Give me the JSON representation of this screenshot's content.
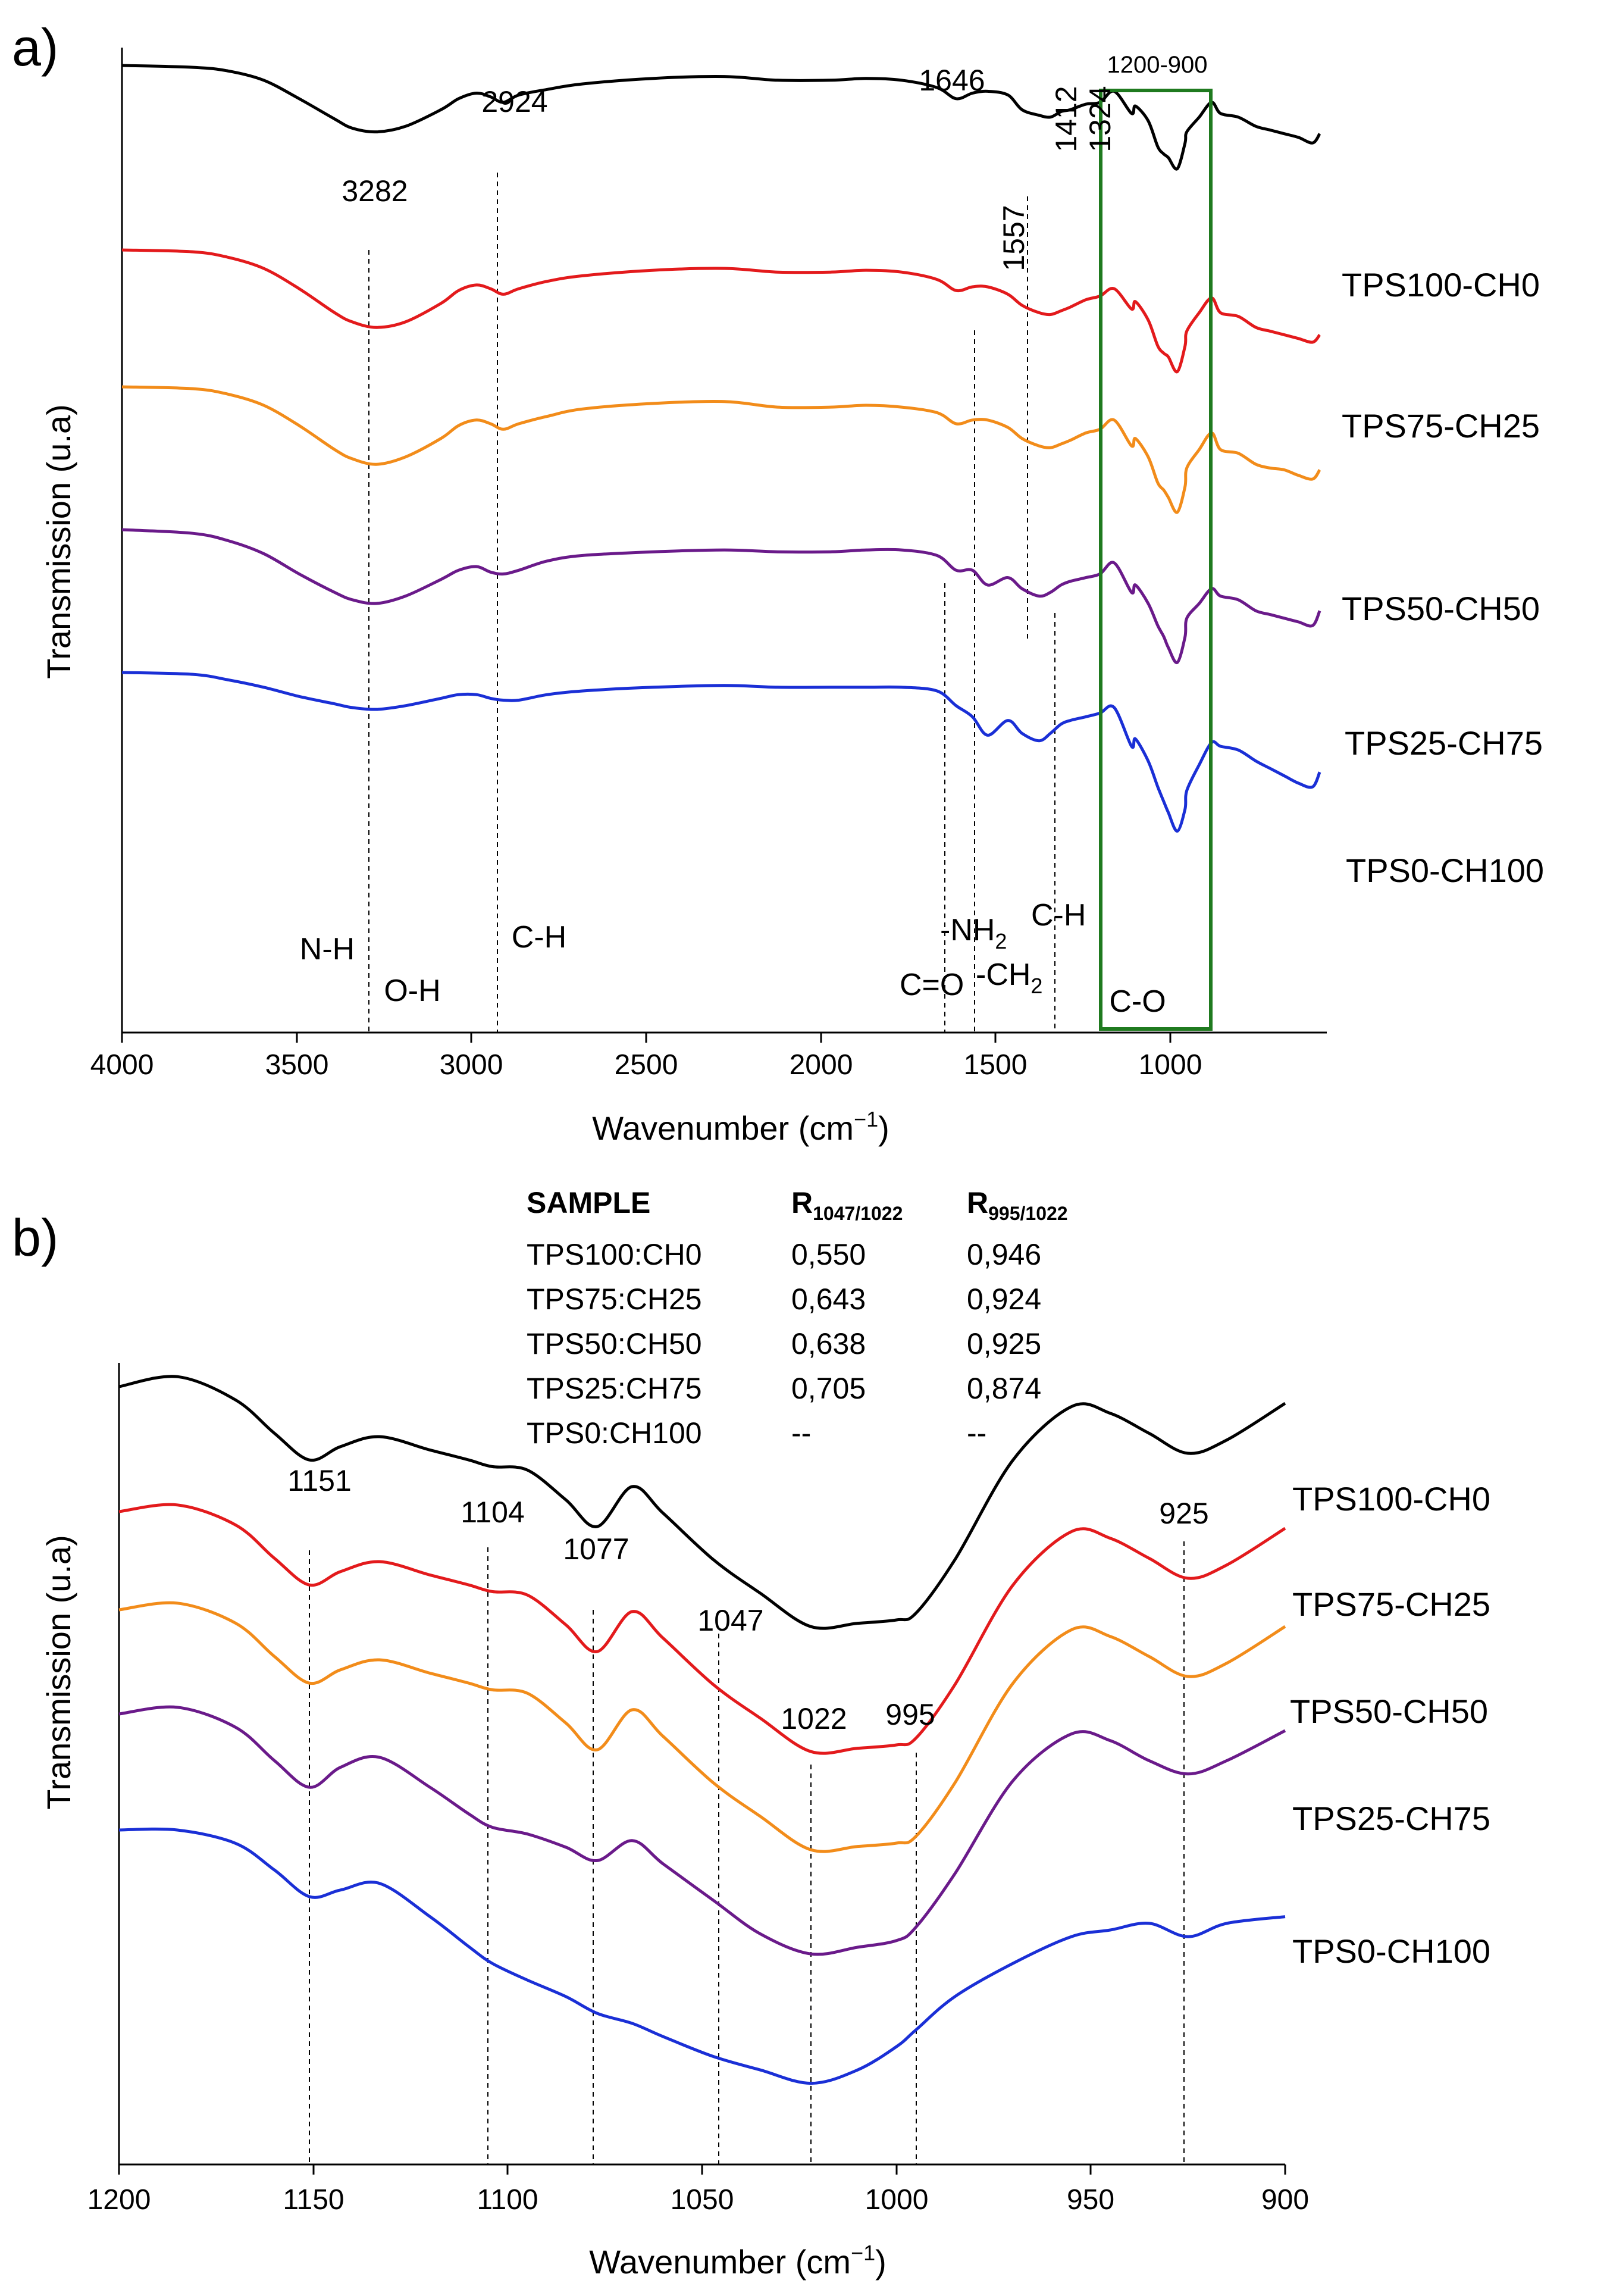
{
  "colors": {
    "TPS100-CH0": "#000000",
    "TPS75-CH25": "#e31a1c",
    "TPS50-CH50": "#f28c1a",
    "TPS25-CH75": "#6a1a8a",
    "TPS0-CH100": "#1a2fd6",
    "box": "#1f7a1f"
  },
  "chart_data": [
    {
      "panel": "a)",
      "type": "line",
      "xlabel_main": "Wavenumber (cm",
      "xlabel_sup": "−1",
      "xlabel_end": ")",
      "ylabel": "Transmission (u.a)",
      "xlim": [
        4000,
        600
      ],
      "x_ticks": [
        4000,
        3500,
        3000,
        2500,
        2000,
        1500,
        1000
      ],
      "grid": false,
      "legend": "labels at right end of each curve",
      "series_x": [
        4000,
        3800,
        3700,
        3600,
        3500,
        3400,
        3350,
        3282,
        3200,
        3100,
        3050,
        3000,
        2960,
        2924,
        2880,
        2800,
        2700,
        2500,
        2300,
        2150,
        2000,
        1900,
        1800,
        1700,
        1646,
        1600,
        1557,
        1500,
        1460,
        1412,
        1380,
        1350,
        1324,
        1280,
        1240,
        1200,
        1151,
        1140,
        1104,
        1077,
        1060,
        1047,
        1022,
        1000,
        995,
        960,
        925,
        900,
        850,
        800,
        760,
        720,
        680,
        640,
        620
      ],
      "series": [
        {
          "name": "TPS100-CH0",
          "values": [
            100,
            99,
            97,
            92,
            82,
            71,
            66,
            64,
            67,
            76,
            82,
            85,
            83,
            80,
            84,
            87,
            90,
            93,
            94,
            92,
            92,
            93,
            92,
            88,
            82,
            85,
            86,
            84,
            76,
            73,
            72,
            75,
            76,
            79,
            80,
            86,
            74,
            78,
            70,
            56,
            52,
            50,
            44,
            58,
            64,
            72,
            80,
            74,
            72,
            67,
            65,
            63,
            61,
            58,
            63
          ]
        },
        {
          "name": "TPS75-CH25",
          "values": [
            100,
            99,
            96,
            90,
            79,
            66,
            61,
            58,
            61,
            71,
            78,
            81,
            79,
            76,
            79,
            83,
            86,
            89,
            90,
            88,
            88,
            89,
            88,
            84,
            78,
            80,
            80,
            76,
            70,
            66,
            65,
            67,
            69,
            73,
            75,
            79,
            68,
            72,
            62,
            48,
            44,
            42,
            34,
            48,
            56,
            66,
            74,
            66,
            64,
            58,
            56,
            54,
            52,
            50,
            54
          ]
        },
        {
          "name": "TPS50-CH50",
          "values": [
            100,
            99,
            96,
            90,
            79,
            66,
            61,
            58,
            62,
            72,
            79,
            82,
            80,
            77,
            80,
            84,
            88,
            91,
            92,
            89,
            89,
            90,
            89,
            86,
            80,
            82,
            82,
            78,
            72,
            68,
            67,
            69,
            71,
            75,
            77,
            82,
            68,
            72,
            62,
            48,
            44,
            40,
            32,
            46,
            56,
            66,
            75,
            66,
            64,
            58,
            56,
            55,
            52,
            50,
            55
          ]
        },
        {
          "name": "TPS25-CH75",
          "values": [
            100,
            98,
            94,
            87,
            76,
            66,
            62,
            60,
            64,
            73,
            78,
            80,
            77,
            76,
            78,
            83,
            86,
            88,
            89,
            88,
            88,
            89,
            89,
            86,
            78,
            78,
            70,
            74,
            68,
            64,
            66,
            70,
            72,
            74,
            76,
            82,
            66,
            70,
            60,
            48,
            42,
            36,
            28,
            42,
            52,
            60,
            68,
            64,
            62,
            56,
            54,
            52,
            50,
            48,
            56
          ]
        },
        {
          "name": "TPS0-CH100",
          "values": [
            100,
            99,
            96,
            92,
            87,
            83,
            81,
            80,
            82,
            86,
            88,
            88,
            86,
            85,
            85,
            88,
            90,
            92,
            93,
            92,
            92,
            92,
            92,
            90,
            82,
            76,
            66,
            74,
            67,
            63,
            67,
            72,
            74,
            76,
            78,
            81,
            60,
            64,
            52,
            38,
            30,
            24,
            14,
            26,
            36,
            50,
            62,
            60,
            58,
            52,
            48,
            44,
            40,
            38,
            46
          ]
        }
      ],
      "peak_labels": [
        "3282",
        "2924",
        "1646",
        "1412",
        "1324",
        "1557"
      ],
      "group_labels": [
        "N-H",
        "O-H",
        "C-H",
        "-NH",
        "2",
        "C-H",
        "C=O",
        "-CH",
        "2",
        "C-O"
      ],
      "box_label": "1200-900"
    },
    {
      "panel": "b)",
      "type": "line",
      "xlabel_main": "Wavenumber (cm",
      "xlabel_sup": "−1",
      "xlabel_end": ")",
      "ylabel": "Transmission (u.a)",
      "xlim": [
        1200,
        900
      ],
      "x_ticks": [
        1200,
        1150,
        1100,
        1050,
        1000,
        950,
        900
      ],
      "grid": false,
      "legend": "labels at right end of each curve",
      "series_x": [
        1200,
        1185,
        1170,
        1160,
        1151,
        1143,
        1133,
        1120,
        1110,
        1104,
        1095,
        1085,
        1077,
        1068,
        1060,
        1047,
        1035,
        1022,
        1010,
        1000,
        995,
        985,
        970,
        955,
        945,
        935,
        925,
        915,
        900
      ],
      "series": [
        {
          "name": "TPS100-CH0",
          "values": [
            100,
            103,
            96,
            86,
            78,
            82,
            85,
            81,
            78,
            76,
            75,
            66,
            58,
            70,
            62,
            48,
            38,
            28,
            29,
            30,
            32,
            48,
            78,
            94,
            92,
            86,
            80,
            84,
            95
          ]
        },
        {
          "name": "TPS75-CH25",
          "values": [
            100,
            102,
            96,
            86,
            78,
            82,
            85,
            81,
            78,
            76,
            75,
            66,
            58,
            70,
            62,
            48,
            38,
            28,
            29,
            30,
            32,
            48,
            78,
            94,
            92,
            86,
            80,
            84,
            95
          ]
        },
        {
          "name": "TPS50-CH50",
          "values": [
            100,
            102,
            96,
            86,
            78,
            82,
            85,
            81,
            78,
            76,
            75,
            66,
            58,
            70,
            62,
            48,
            38,
            28,
            29,
            30,
            32,
            48,
            78,
            94,
            92,
            86,
            80,
            84,
            95
          ]
        },
        {
          "name": "TPS25-CH75",
          "values": [
            100,
            102,
            96,
            86,
            78,
            84,
            87,
            78,
            70,
            66,
            64,
            60,
            56,
            62,
            55,
            44,
            34,
            28,
            30,
            32,
            36,
            52,
            80,
            94,
            92,
            86,
            82,
            86,
            95
          ]
        },
        {
          "name": "TPS0-CH100",
          "values": [
            100,
            100,
            96,
            88,
            80,
            82,
            84,
            74,
            65,
            60,
            55,
            50,
            45,
            42,
            38,
            32,
            28,
            24,
            28,
            35,
            40,
            50,
            60,
            68,
            70,
            72,
            68,
            72,
            74
          ]
        }
      ],
      "peak_labels": [
        "1151",
        "1104",
        "1077",
        "1047",
        "1022",
        "995",
        "925"
      ],
      "table": {
        "headers": [
          "SAMPLE",
          "R",
          "1047/1022",
          "R",
          "995/1022"
        ],
        "rows": [
          [
            "TPS100:CH0",
            "0,550",
            "0,946"
          ],
          [
            "TPS75:CH25",
            "0,643",
            "0,924"
          ],
          [
            "TPS50:CH50",
            "0,638",
            "0,925"
          ],
          [
            "TPS25:CH75",
            "0,705",
            "0,874"
          ],
          [
            "TPS0:CH100",
            "--",
            "--"
          ]
        ]
      }
    }
  ],
  "series_labels": [
    "TPS100-CH0",
    "TPS75-CH25",
    "TPS50-CH50",
    "TPS25-CH75",
    "TPS0-CH100"
  ]
}
